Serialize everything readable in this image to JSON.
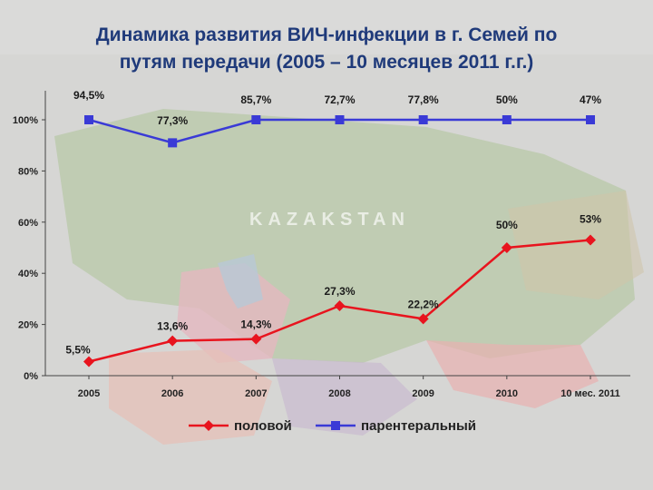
{
  "title_line1": "Динамика развития ВИЧ-инфекции в г. Семей по",
  "title_line2": "путям передачи (2005 – 10 месяцев 2011 г.г.)",
  "map_text": "KAZAKSTAN",
  "colors": {
    "title": "#1f3a7a",
    "series_sexual": "#e8141e",
    "series_parenteral": "#3a3ad6",
    "axis": "#444444"
  },
  "chart_data": {
    "type": "line",
    "categories": [
      "2005",
      "2006",
      "2007",
      "2008",
      "2009",
      "2010",
      "10 мес. 2011"
    ],
    "y_ticks": [
      "0%",
      "20%",
      "40%",
      "60%",
      "80%",
      "100%"
    ],
    "ylim": [
      0,
      100
    ],
    "grid": false,
    "legend_position": "bottom",
    "series": [
      {
        "name": "половой",
        "marker": "diamond",
        "values": [
          5.5,
          13.6,
          14.3,
          27.3,
          22.2,
          50,
          53
        ],
        "labels": [
          "5,5%",
          "13,6%",
          "14,3%",
          "27,3%",
          "22,2%",
          "50%",
          "53%"
        ]
      },
      {
        "name": "парентеральный",
        "marker": "square",
        "values": [
          100,
          91,
          100,
          100,
          100,
          100,
          100
        ],
        "labels": [
          "94,5%",
          "77,3%",
          "85,7%",
          "72,7%",
          "77,8%",
          "50%",
          "47%"
        ]
      }
    ]
  }
}
